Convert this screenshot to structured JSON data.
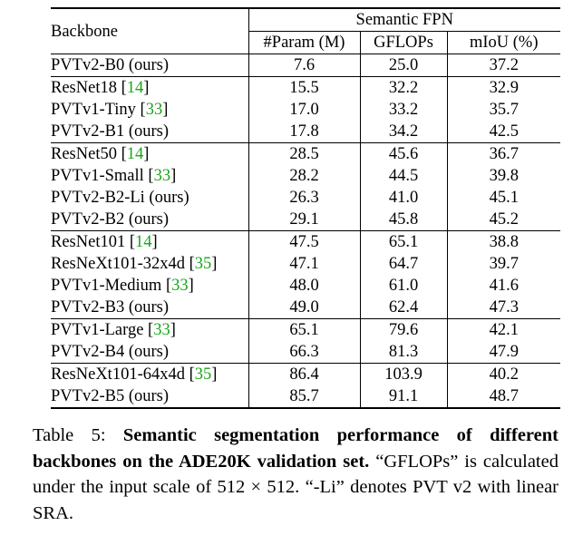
{
  "table": {
    "header": {
      "backbone": "Backbone",
      "group": "Semantic FPN",
      "columns": [
        "#Param (M)",
        "GFLOPs",
        "mIoU (%)"
      ]
    },
    "groups": [
      {
        "rows": [
          {
            "name": "PVTv2-B0 (ours)",
            "ref": "",
            "param": "7.6",
            "gflops": "25.0",
            "miou": "37.2",
            "bold": [
              true,
              true,
              true
            ]
          }
        ]
      },
      {
        "rows": [
          {
            "name": "ResNet18",
            "ref": "14",
            "param": "15.5",
            "gflops": "32.2",
            "miou": "32.9",
            "bold": [
              true,
              true,
              false
            ]
          },
          {
            "name": "PVTv1-Tiny",
            "ref": "33",
            "param": "17.0",
            "gflops": "33.2",
            "miou": "35.7",
            "bold": [
              false,
              false,
              false
            ]
          },
          {
            "name": "PVTv2-B1 (ours)",
            "ref": "",
            "param": "17.8",
            "gflops": "34.2",
            "miou": "42.5",
            "bold": [
              false,
              false,
              true
            ]
          }
        ]
      },
      {
        "rows": [
          {
            "name": "ResNet50",
            "ref": "14",
            "param": "28.5",
            "gflops": "45.6",
            "miou": "36.7",
            "bold": [
              false,
              false,
              false
            ]
          },
          {
            "name": "PVTv1-Small",
            "ref": "33",
            "param": "28.2",
            "gflops": "44.5",
            "miou": "39.8",
            "bold": [
              false,
              false,
              false
            ]
          },
          {
            "name": "PVTv2-B2-Li (ours)",
            "ref": "",
            "param": "26.3",
            "gflops": "41.0",
            "miou": "45.1",
            "bold": [
              true,
              true,
              false
            ]
          },
          {
            "name": "PVTv2-B2 (ours)",
            "ref": "",
            "param": "29.1",
            "gflops": "45.8",
            "miou": "45.2",
            "bold": [
              false,
              false,
              true
            ]
          }
        ]
      },
      {
        "rows": [
          {
            "name": "ResNet101",
            "ref": "14",
            "param": "47.5",
            "gflops": "65.1",
            "miou": "38.8",
            "bold": [
              false,
              false,
              false
            ]
          },
          {
            "name": "ResNeXt101-32x4d",
            "ref": "35",
            "param": "47.1",
            "gflops": "64.7",
            "miou": "39.7",
            "bold": [
              true,
              false,
              false
            ]
          },
          {
            "name": "PVTv1-Medium",
            "ref": "33",
            "param": "48.0",
            "gflops": "61.0",
            "miou": "41.6",
            "bold": [
              false,
              true,
              false
            ]
          },
          {
            "name": "PVTv2-B3 (ours)",
            "ref": "",
            "param": "49.0",
            "gflops": "62.4",
            "miou": "47.3",
            "bold": [
              false,
              false,
              true
            ]
          }
        ]
      },
      {
        "rows": [
          {
            "name": "PVTv1-Large",
            "ref": "33",
            "param": "65.1",
            "gflops": "79.6",
            "miou": "42.1",
            "bold": [
              true,
              true,
              false
            ]
          },
          {
            "name": "PVTv2-B4 (ours)",
            "ref": "",
            "param": "66.3",
            "gflops": "81.3",
            "miou": "47.9",
            "bold": [
              false,
              false,
              true
            ]
          }
        ]
      },
      {
        "rows": [
          {
            "name": "ResNeXt101-64x4d",
            "ref": "35",
            "param": "86.4",
            "gflops": "103.9",
            "miou": "40.2",
            "bold": [
              false,
              false,
              false
            ]
          },
          {
            "name": "PVTv2-B5 (ours)",
            "ref": "",
            "param": "85.7",
            "gflops": "91.1",
            "miou": "48.7",
            "bold": [
              true,
              true,
              true
            ]
          }
        ]
      }
    ]
  },
  "caption": {
    "label": "Table 5: ",
    "bold": "Semantic segmentation performance of different backbones on the ADE20K validation set.",
    "rest": " “GFLOPs” is calculated under the input scale of 512 × 512. “-Li” denotes PVT v2 with linear SRA."
  },
  "colors": {
    "citation": "#19a519",
    "text": "#000000"
  }
}
